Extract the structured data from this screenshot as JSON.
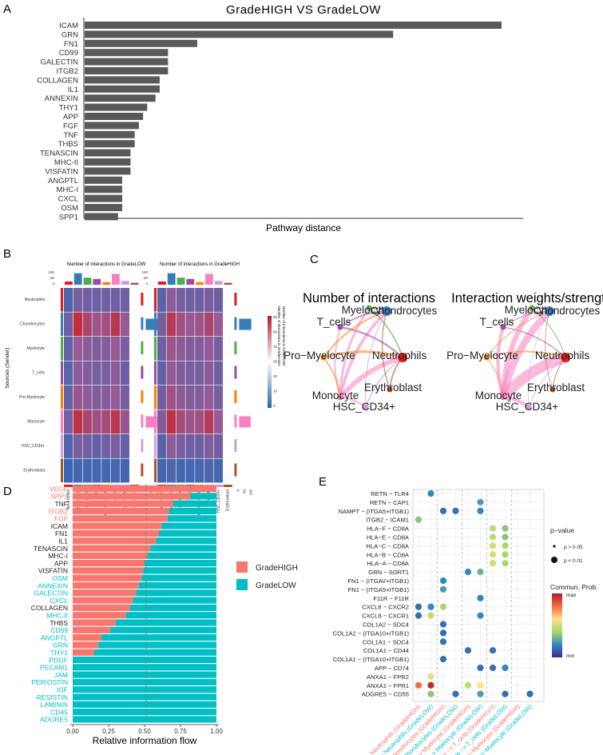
{
  "panels": {
    "A": "A",
    "B": "B",
    "C": "C",
    "D": "D",
    "E": "E"
  },
  "chart_data": [
    {
      "type": "bar",
      "orientation": "horizontal",
      "title": "GradeHIGH VS GradeLOW",
      "xlabel": "Pathway distance",
      "categories": [
        "ICAM",
        "GRN",
        "FN1",
        "CD99",
        "GALECTIN",
        "ITGB2",
        "COLLAGEN",
        "IL1",
        "ANNEXIN",
        "THY1",
        "APP",
        "FGF",
        "TNF",
        "THBS",
        "TENASCIN",
        "MHC-II",
        "VISFATIN",
        "ANGPTL",
        "MHC-I",
        "CXCL",
        "OSM",
        "SPP1"
      ],
      "values": [
        1.0,
        0.74,
        0.27,
        0.2,
        0.2,
        0.2,
        0.18,
        0.18,
        0.17,
        0.15,
        0.14,
        0.13,
        0.12,
        0.12,
        0.11,
        0.11,
        0.11,
        0.09,
        0.09,
        0.09,
        0.09,
        0.08
      ],
      "color": "#595959"
    },
    {
      "type": "heatmap",
      "title_low": "Number of interactions in GradeLOW",
      "title_high": "Number of interactions in GradeHIGH",
      "ylabel": "Sources (Sender)",
      "cells": [
        "Neutrophils",
        "Chondrocytes",
        "Myelocyte",
        "T_cells",
        "Pro-Myelocyte",
        "Monocyte",
        "HSC_CD34+",
        "Erythroblast"
      ],
      "top_ticks": [
        "100",
        "50",
        "0"
      ],
      "side_ticks": [
        "0",
        "50",
        "100"
      ],
      "legend_ticks": [
        "60",
        "50",
        "40",
        "30",
        "20",
        "10",
        "0"
      ],
      "legend_label_low": "Number of interactions in GradeLOW",
      "legend_label_high": "Number of interactions in GradeHIGH",
      "cell_colors": [
        "#e41a1c",
        "#377eb8",
        "#4daf4a",
        "#984ea3",
        "#ff7f00",
        "#f781bf",
        "#c9a0dc",
        "#a65628"
      ],
      "matrix_low": [
        [
          0.15,
          0.35,
          0.3,
          0.3,
          0.3,
          0.3,
          0.3,
          0.1
        ],
        [
          0.3,
          0.95,
          0.7,
          0.55,
          0.6,
          0.85,
          0.5,
          0.2
        ],
        [
          0.25,
          0.5,
          0.45,
          0.4,
          0.4,
          0.5,
          0.35,
          0.15
        ],
        [
          0.2,
          0.45,
          0.4,
          0.35,
          0.35,
          0.45,
          0.3,
          0.1
        ],
        [
          0.25,
          0.55,
          0.45,
          0.4,
          0.4,
          0.5,
          0.35,
          0.1
        ],
        [
          0.35,
          0.9,
          0.7,
          0.6,
          0.65,
          0.85,
          0.55,
          0.2
        ],
        [
          0.15,
          0.35,
          0.3,
          0.25,
          0.3,
          0.35,
          0.25,
          0.1
        ],
        [
          0.05,
          0.1,
          0.1,
          0.1,
          0.1,
          0.1,
          0.1,
          0.05
        ]
      ],
      "matrix_high": [
        [
          0.2,
          0.45,
          0.35,
          0.3,
          0.3,
          0.35,
          0.3,
          0.1
        ],
        [
          0.35,
          0.8,
          0.6,
          0.5,
          0.55,
          0.7,
          0.5,
          0.15
        ],
        [
          0.3,
          0.55,
          0.45,
          0.4,
          0.4,
          0.5,
          0.35,
          0.1
        ],
        [
          0.25,
          0.5,
          0.4,
          0.35,
          0.35,
          0.45,
          0.3,
          0.1
        ],
        [
          0.3,
          0.6,
          0.45,
          0.4,
          0.4,
          0.5,
          0.35,
          0.1
        ],
        [
          0.4,
          0.9,
          0.65,
          0.55,
          0.6,
          0.8,
          0.5,
          0.15
        ],
        [
          0.2,
          0.45,
          0.35,
          0.3,
          0.3,
          0.4,
          0.3,
          0.1
        ],
        [
          0.1,
          0.15,
          0.1,
          0.1,
          0.1,
          0.15,
          0.1,
          0.05
        ]
      ]
    },
    {
      "type": "network",
      "left_title": "Number of interactions",
      "right_title": "Interaction weights/strength",
      "nodes": [
        {
          "name": "Myelocyte",
          "color": "#4daf4a"
        },
        {
          "name": "Chondrocytes",
          "color": "#377eb8"
        },
        {
          "name": "T_cells",
          "color": "#984ea3"
        },
        {
          "name": "Pro−Myelocyte",
          "color": "#ff7f00"
        },
        {
          "name": "Neutrophils",
          "color": "#e41a1c"
        },
        {
          "name": "Erythroblast",
          "color": "#a65628"
        },
        {
          "name": "Monocyte",
          "color": "#f781bf"
        },
        {
          "name": "HSC_CD34+",
          "color": "#c9a0dc"
        }
      ]
    },
    {
      "type": "bar",
      "orientation": "horizontal-stacked",
      "xlabel": "Relative information flow",
      "xticks": [
        "0.00",
        "0.25",
        "0.50",
        "0.75",
        "1.00"
      ],
      "xlim": [
        0,
        1
      ],
      "categories": [
        "VEGF",
        "SPP1",
        "TNF",
        "ITGB2",
        "FGF",
        "ICAM",
        "FN1",
        "IL1",
        "TENASCIN",
        "MHC-I",
        "APP",
        "VISFATIN",
        "OSM",
        "ANNEXIN",
        "GALECTIN",
        "CXCL",
        "COLLAGEN",
        "MHC-II",
        "THBS",
        "CD99",
        "ANGPTL",
        "GRN",
        "THY1",
        "PDGF",
        "PECAM1",
        "JAM",
        "PERIOSTIN",
        "IGF",
        "RESISTIN",
        "LAMININ",
        "CD45",
        "ADGRE5"
      ],
      "label_colors": [
        "#f8766d",
        "#f8766d",
        "#222222",
        "#f8766d",
        "#f8766d",
        "#222222",
        "#222222",
        "#222222",
        "#222222",
        "#222222",
        "#222222",
        "#222222",
        "#00bfc4",
        "#00bfc4",
        "#00bfc4",
        "#00bfc4",
        "#222222",
        "#00bfc4",
        "#222222",
        "#00bfc4",
        "#00bfc4",
        "#00bfc4",
        "#00bfc4",
        "#00bfc4",
        "#00bfc4",
        "#00bfc4",
        "#00bfc4",
        "#00bfc4",
        "#00bfc4",
        "#00bfc4",
        "#00bfc4",
        "#00bfc4"
      ],
      "series": [
        {
          "name": "GradeHIGH",
          "color": "#f8766d",
          "values": [
            1.0,
            0.82,
            0.7,
            0.67,
            0.66,
            0.62,
            0.6,
            0.58,
            0.54,
            0.52,
            0.5,
            0.49,
            0.48,
            0.46,
            0.44,
            0.42,
            0.4,
            0.37,
            0.3,
            0.26,
            0.2,
            0.18,
            0.15,
            0,
            0,
            0,
            0,
            0,
            0,
            0,
            0,
            0
          ]
        },
        {
          "name": "GradeLOW",
          "color": "#00bfc4",
          "values": [
            0,
            0.18,
            0.3,
            0.33,
            0.34,
            0.38,
            0.4,
            0.42,
            0.46,
            0.48,
            0.5,
            0.51,
            0.52,
            0.54,
            0.56,
            0.58,
            0.6,
            0.63,
            0.7,
            0.74,
            0.8,
            0.82,
            0.85,
            1,
            1,
            1,
            1,
            1,
            1,
            1,
            1,
            1
          ]
        }
      ],
      "reference_line": 0.5
    },
    {
      "type": "scatter",
      "subtype": "dotplot",
      "rows": [
        "RETN − TLR4",
        "RETN − CAP1",
        "NAMPT − (ITGA5+ITGB1)",
        "ITGB2 − ICAM1",
        "HLA−F − CD8A",
        "HLA−E − CD8A",
        "HLA−C − CD8A",
        "HLA−B − CD8A",
        "HLA−A − CD8A",
        "GRN − SORT1",
        "FN1 − (ITGAV+ITGB1)",
        "FN1 − (ITGA5+ITGB1)",
        "F11R − F11R",
        "CXCL8 − CXCR2",
        "CXCL8 − CXCR1",
        "COL1A2 − SDC4",
        "COL1A2 − (ITGA10+ITGB1)",
        "COL1A1 − SDC4",
        "COL1A1 − CD44",
        "COL1A1 − (ITGA10+ITGB1)",
        "APP − CD74",
        "ANXA1 − FPR2",
        "ANXA1 − FPR1",
        "ADGRE5 − CD55"
      ],
      "columns": [
        "Myelocyte −> Neutrophils (GradeHIGH)",
        "Myelocyte −> Neutrophils (GradeLOW)",
        "Myelocyte −> Chondrocytes (GradeHIGH)",
        "Myelocyte −> Chondrocytes (GradeLOW)",
        "Myelocyte −> Myelocyte (GradeHIGH)",
        "Myelocyte −> Myelocyte (GradeLOW)",
        "Myelocyte −> T_cells (GradeHIGH)",
        "Myelocyte −> T_cells (GradeLOW)",
        "Myelocyte −> Pro−Myelocyte (GradeHIGH)",
        "Myelocyte −> Pro−Myelocyte (GradeLOW)"
      ],
      "column_colors": [
        "#f8766d",
        "#00bfc4",
        "#f8766d",
        "#00bfc4",
        "#f8766d",
        "#00bfc4",
        "#f8766d",
        "#00bfc4",
        "#f8766d",
        "#00bfc4"
      ],
      "points": [
        [
          0,
          1,
          0.2,
          1
        ],
        [
          1,
          5,
          0.25,
          1
        ],
        [
          2,
          2,
          0.15,
          1
        ],
        [
          2,
          3,
          0.15,
          1
        ],
        [
          2,
          5,
          0.2,
          1
        ],
        [
          3,
          0,
          0.35,
          1
        ],
        [
          4,
          6,
          0.45,
          1
        ],
        [
          4,
          7,
          0.35,
          1
        ],
        [
          5,
          6,
          0.45,
          1
        ],
        [
          5,
          7,
          0.35,
          1
        ],
        [
          6,
          6,
          0.5,
          1
        ],
        [
          6,
          7,
          0.4,
          1
        ],
        [
          7,
          6,
          0.5,
          1
        ],
        [
          7,
          7,
          0.4,
          1
        ],
        [
          8,
          6,
          0.5,
          1
        ],
        [
          8,
          7,
          0.4,
          1
        ],
        [
          9,
          4,
          0.2,
          1
        ],
        [
          9,
          5,
          0.3,
          1
        ],
        [
          10,
          2,
          0.2,
          1
        ],
        [
          11,
          2,
          0.25,
          1
        ],
        [
          12,
          5,
          0.2,
          1
        ],
        [
          13,
          0,
          0.15,
          1
        ],
        [
          13,
          1,
          0.2,
          1
        ],
        [
          13,
          2,
          0.4,
          1
        ],
        [
          14,
          0,
          0.15,
          1
        ],
        [
          14,
          1,
          0.45,
          1
        ],
        [
          14,
          5,
          0.2,
          1
        ],
        [
          15,
          2,
          0.15,
          1
        ],
        [
          16,
          2,
          0.15,
          1
        ],
        [
          17,
          2,
          0.15,
          1
        ],
        [
          18,
          4,
          0.15,
          1
        ],
        [
          18,
          6,
          0.15,
          1
        ],
        [
          19,
          2,
          0.15,
          1
        ],
        [
          20,
          5,
          0.15,
          1
        ],
        [
          20,
          6,
          0.15,
          1
        ],
        [
          20,
          7,
          0.2,
          1
        ],
        [
          21,
          1,
          0.55,
          1
        ],
        [
          22,
          0,
          0.8,
          1
        ],
        [
          22,
          1,
          0.95,
          1
        ],
        [
          22,
          4,
          0.45,
          1
        ],
        [
          22,
          5,
          0.6,
          1
        ],
        [
          23,
          1,
          0.35,
          1
        ],
        [
          23,
          3,
          0.15,
          1
        ],
        [
          23,
          5,
          0.25,
          1
        ],
        [
          23,
          7,
          0.15,
          1
        ],
        [
          23,
          9,
          0.15,
          1
        ]
      ],
      "legend_title_p": "p−value",
      "legend_p": [
        "p > 0.05",
        "p < 0.01"
      ],
      "legend_title_prob": "Commun. Prob.",
      "legend_prob_max": "max",
      "legend_prob_min": "min"
    }
  ]
}
